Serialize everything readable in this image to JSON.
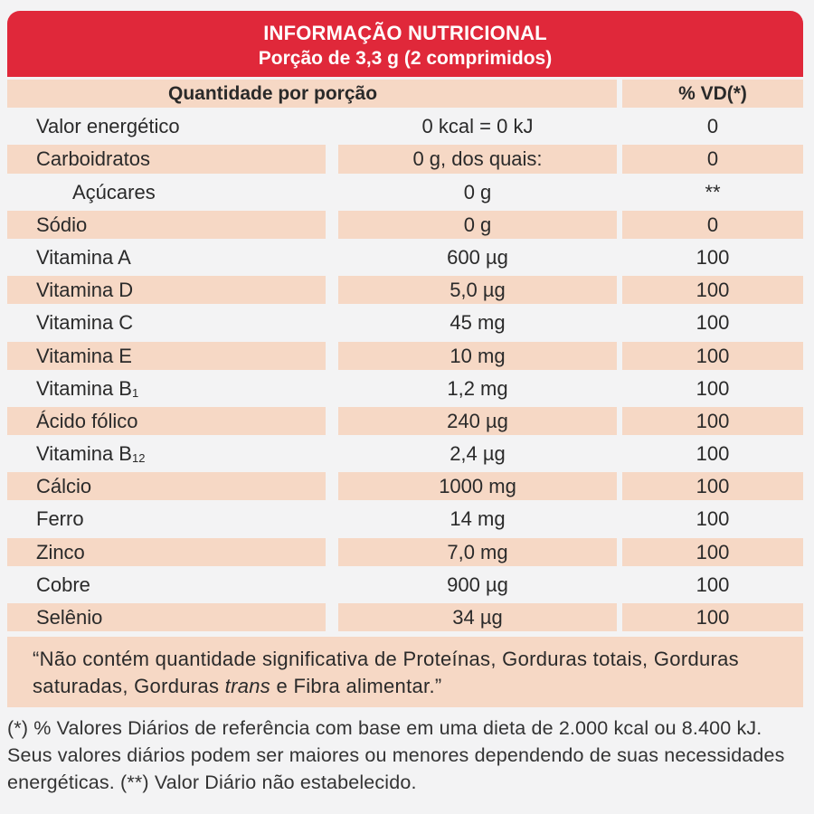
{
  "header": {
    "title": "INFORMAÇÃO NUTRICIONAL",
    "subtitle": "Porção de 3,3 g (2 comprimidos)"
  },
  "table": {
    "headers": {
      "amount": "Quantidade por porção",
      "vd": "% VD(*)"
    },
    "rows": [
      {
        "name": "Valor energético",
        "sub": "",
        "amount": "0 kcal = 0 kJ",
        "vd": "0"
      },
      {
        "name": "Carboidratos",
        "sub": "",
        "amount": "0 g, dos quais:",
        "vd": "0"
      },
      {
        "name": "Açúcares",
        "sub": "",
        "amount": "0 g",
        "vd": "**"
      },
      {
        "name": "Sódio",
        "sub": "",
        "amount": "0 g",
        "vd": "0"
      },
      {
        "name": "Vitamina A",
        "sub": "",
        "amount": "600 µg",
        "vd": "100"
      },
      {
        "name": "Vitamina D",
        "sub": "",
        "amount": "5,0 µg",
        "vd": "100"
      },
      {
        "name": "Vitamina C",
        "sub": "",
        "amount": "45 mg",
        "vd": "100"
      },
      {
        "name": "Vitamina E",
        "sub": "",
        "amount": "10 mg",
        "vd": "100"
      },
      {
        "name": "Vitamina B",
        "sub": "1",
        "amount": "1,2 mg",
        "vd": "100"
      },
      {
        "name": "Ácido fólico",
        "sub": "",
        "amount": "240 µg",
        "vd": "100"
      },
      {
        "name": "Vitamina B",
        "sub": "12",
        "amount": "2,4 µg",
        "vd": "100"
      },
      {
        "name": "Cálcio",
        "sub": "",
        "amount": "1000 mg",
        "vd": "100"
      },
      {
        "name": "Ferro",
        "sub": "",
        "amount": "14 mg",
        "vd": "100"
      },
      {
        "name": "Zinco",
        "sub": "",
        "amount": "7,0 mg",
        "vd": "100"
      },
      {
        "name": "Cobre",
        "sub": "",
        "amount": "900 µg",
        "vd": "100"
      },
      {
        "name": "Selênio",
        "sub": "",
        "amount": "34 µg",
        "vd": "100"
      }
    ]
  },
  "note": {
    "before": "“Não contém quantidade significativa de Proteínas, Gorduras totais, Gorduras saturadas, Gorduras ",
    "italic": "trans",
    "after": " e Fibra alimentar.”"
  },
  "footer": {
    "text": "(*) % Valores Diários de referência com base em uma dieta de 2.000 kcal ou 8.400 kJ. Seus valores diários podem ser maiores ou menores dependendo de suas necessidades energéticas. (**) Valor Diário não estabelecido."
  },
  "colors": {
    "header_red": "#e0283a",
    "row_shade": "#f6d8c5",
    "background": "#f3f3f4"
  }
}
